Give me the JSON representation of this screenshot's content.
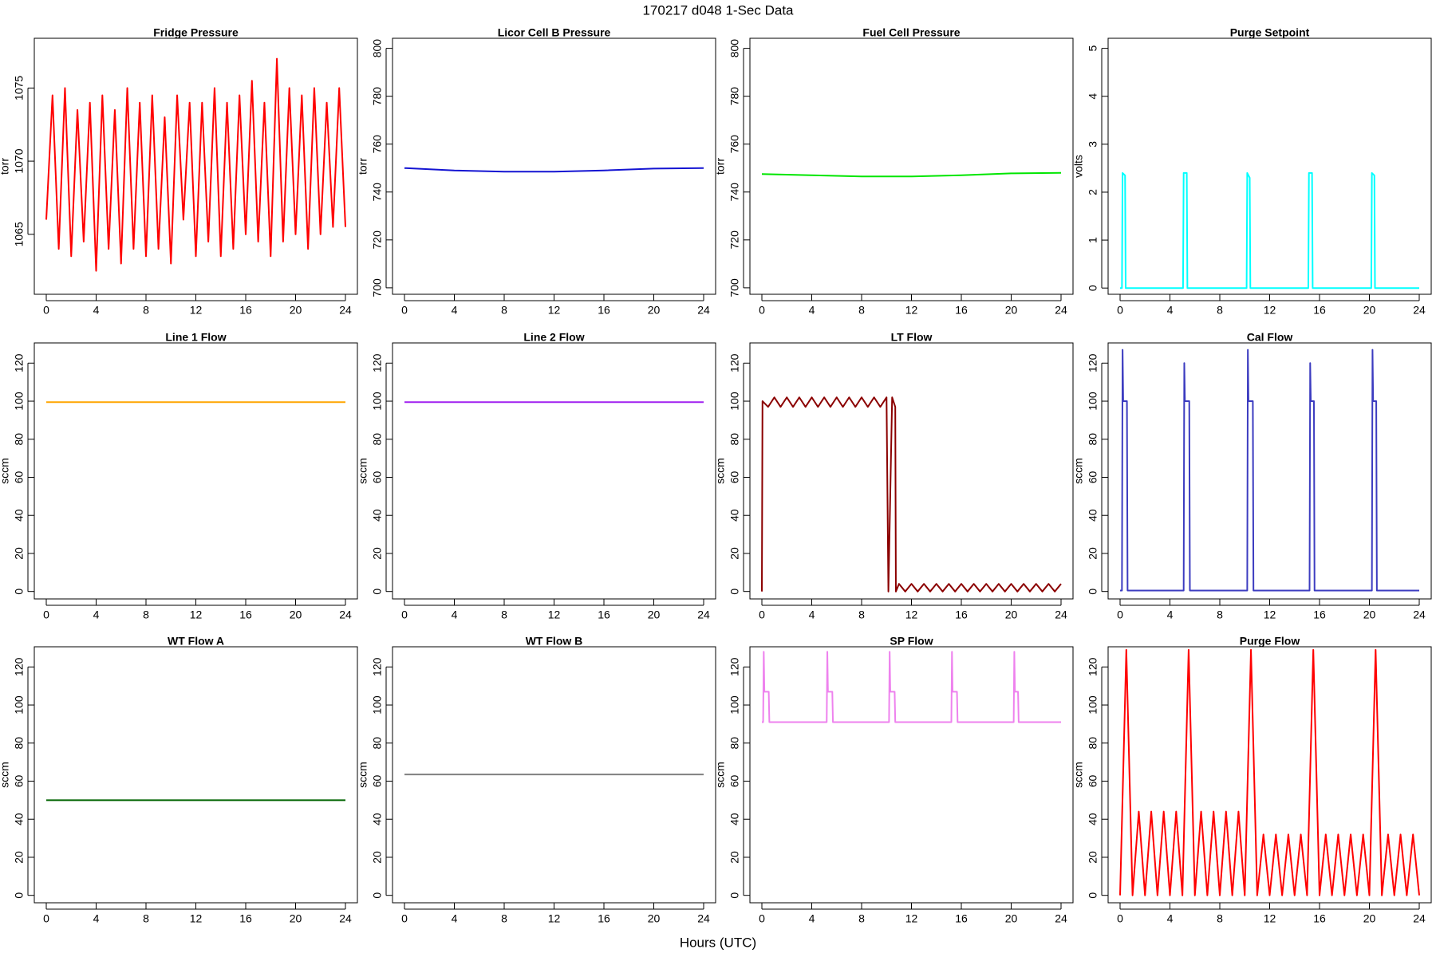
{
  "title": "170217   d048   1-Sec Data",
  "xlabel": "Hours (UTC)",
  "chart_data": [
    {
      "type": "line",
      "title": "Fridge Pressure",
      "ylabel": "torr",
      "color": "#ff0000",
      "x": [
        0,
        0.5,
        1,
        1.5,
        2,
        2.5,
        3,
        3.5,
        4,
        4.5,
        5,
        5.5,
        6,
        6.5,
        7,
        7.5,
        8,
        8.5,
        9,
        9.5,
        10,
        10.5,
        11,
        11.5,
        12,
        12.5,
        13,
        13.5,
        14,
        14.5,
        15,
        15.5,
        16,
        16.5,
        17,
        17.5,
        18,
        18.5,
        19,
        19.5,
        20,
        20.5,
        21,
        21.5,
        22,
        22.5,
        23,
        23.5,
        24
      ],
      "values": [
        1066,
        1074.5,
        1064,
        1075,
        1063.5,
        1073.5,
        1064.5,
        1074,
        1062.5,
        1074.5,
        1064,
        1073.5,
        1063,
        1075,
        1064,
        1074,
        1063.5,
        1074.5,
        1064,
        1073,
        1063,
        1074.5,
        1066,
        1074,
        1063.5,
        1074,
        1064.5,
        1075,
        1063.5,
        1074,
        1064,
        1074.5,
        1065,
        1075.5,
        1064.5,
        1074,
        1063.5,
        1077,
        1064.5,
        1075,
        1065,
        1074.5,
        1064,
        1075,
        1065,
        1074,
        1065.5,
        1075,
        1065.5
      ],
      "xlim": [
        -0.96,
        24.96
      ],
      "xticks": [
        0,
        4,
        8,
        12,
        16,
        20,
        24
      ],
      "ylim": [
        1060.9,
        1078.4
      ],
      "yticks": [
        1065,
        1070,
        1075
      ]
    },
    {
      "type": "line",
      "title": "Licor Cell B Pressure",
      "ylabel": "torr",
      "color": "#1414d2",
      "x": [
        0,
        4,
        8,
        12,
        16,
        20,
        24
      ],
      "values": [
        750,
        749,
        748.5,
        748.5,
        749,
        749.8,
        750
      ],
      "xlim": [
        -0.96,
        24.96
      ],
      "xticks": [
        0,
        4,
        8,
        12,
        16,
        20,
        24
      ],
      "ylim": [
        697.3,
        804.2
      ],
      "yticks": [
        700,
        720,
        740,
        760,
        780,
        800
      ]
    },
    {
      "type": "line",
      "title": "Fuel Cell Pressure",
      "ylabel": "torr",
      "color": "#00e600",
      "x": [
        0,
        4,
        8,
        12,
        16,
        20,
        24
      ],
      "values": [
        747.5,
        747,
        746.5,
        746.5,
        747,
        747.8,
        748
      ],
      "xlim": [
        -0.96,
        24.96
      ],
      "xticks": [
        0,
        4,
        8,
        12,
        16,
        20,
        24
      ],
      "ylim": [
        697.3,
        804.2
      ],
      "yticks": [
        700,
        720,
        740,
        760,
        780,
        800
      ]
    },
    {
      "type": "line",
      "title": "Purge Setpoint",
      "ylabel": "volts",
      "color": "#00ffff",
      "x": [
        0,
        0.15,
        0.2,
        0.4,
        0.45,
        5.05,
        5.1,
        5.35,
        5.4,
        10.15,
        10.2,
        10.4,
        10.45,
        15.1,
        15.15,
        15.4,
        15.45,
        20.15,
        20.2,
        20.4,
        20.45,
        24
      ],
      "values": [
        0,
        0,
        2.4,
        2.35,
        0,
        0,
        2.4,
        2.4,
        0,
        0,
        2.4,
        2.3,
        0,
        0,
        2.4,
        2.4,
        0,
        0,
        2.4,
        2.35,
        0,
        0
      ],
      "xlim": [
        -0.96,
        24.96
      ],
      "xticks": [
        0,
        4,
        8,
        12,
        16,
        20,
        24
      ],
      "ylim": [
        -0.13,
        5.21
      ],
      "yticks": [
        0,
        1,
        2,
        3,
        4,
        5
      ]
    },
    {
      "type": "line",
      "title": "Line 1 Flow",
      "ylabel": "sccm",
      "color": "#ffa500",
      "x": [
        0,
        6,
        12,
        18,
        24
      ],
      "values": [
        99.5,
        99.5,
        99.5,
        99.5,
        99.5
      ],
      "xlim": [
        -0.96,
        24.96
      ],
      "xticks": [
        0,
        4,
        8,
        12,
        16,
        20,
        24
      ],
      "ylim": [
        -3.9,
        130.6
      ],
      "yticks": [
        0,
        20,
        40,
        60,
        80,
        100,
        120
      ]
    },
    {
      "type": "line",
      "title": "Line 2 Flow",
      "ylabel": "sccm",
      "color": "#a020f0",
      "x": [
        0,
        6,
        12,
        18,
        24
      ],
      "values": [
        99.5,
        99.5,
        99.5,
        99.5,
        99.5
      ],
      "xlim": [
        -0.96,
        24.96
      ],
      "xticks": [
        0,
        4,
        8,
        12,
        16,
        20,
        24
      ],
      "ylim": [
        -3.9,
        130.6
      ],
      "yticks": [
        0,
        20,
        40,
        60,
        80,
        100,
        120
      ]
    },
    {
      "type": "line",
      "title": "LT Flow",
      "ylabel": "sccm",
      "color": "#8b0000",
      "x": [
        0,
        0.05,
        0.5,
        1,
        1.5,
        2,
        2.5,
        3,
        3.5,
        4,
        4.5,
        5,
        5.5,
        6,
        6.5,
        7,
        7.5,
        8,
        8.5,
        9,
        9.5,
        10,
        10.15,
        10.45,
        10.7,
        10.75,
        11,
        11.5,
        12,
        12.5,
        13,
        13.5,
        14,
        14.5,
        15,
        15.5,
        16,
        16.5,
        17,
        17.5,
        18,
        18.5,
        19,
        19.5,
        20,
        20.5,
        21,
        21.5,
        22,
        22.5,
        23,
        23.5,
        24
      ],
      "values": [
        0,
        100,
        97,
        102,
        97,
        102,
        97,
        102,
        97,
        102,
        97,
        102,
        97,
        102,
        97,
        102,
        97,
        102,
        97,
        102,
        97,
        102,
        0,
        102,
        97,
        0,
        4,
        0,
        4,
        0,
        4,
        0,
        4,
        0,
        4,
        0,
        4,
        0,
        4,
        0,
        4,
        0,
        4,
        0,
        4,
        0,
        4,
        0,
        4,
        0,
        4,
        0,
        4
      ],
      "xlim": [
        -0.96,
        24.96
      ],
      "xticks": [
        0,
        4,
        8,
        12,
        16,
        20,
        24
      ],
      "ylim": [
        -3.9,
        130.6
      ],
      "yticks": [
        0,
        20,
        40,
        60,
        80,
        100,
        120
      ]
    },
    {
      "type": "line",
      "title": "Cal Flow",
      "ylabel": "sccm",
      "color": "#3c3cc0",
      "x": [
        0,
        0.15,
        0.2,
        0.25,
        0.55,
        0.6,
        5.1,
        5.15,
        5.2,
        5.55,
        5.6,
        10.2,
        10.25,
        10.3,
        10.65,
        10.7,
        15.2,
        15.25,
        15.3,
        15.55,
        15.6,
        20.2,
        20.25,
        20.3,
        20.55,
        20.6,
        24
      ],
      "values": [
        0.5,
        0.5,
        127,
        100,
        100,
        0.5,
        0.5,
        120,
        100,
        100,
        0.5,
        0.5,
        127,
        100,
        100,
        0.5,
        0.5,
        120,
        100,
        100,
        0.5,
        0.5,
        127,
        100,
        100,
        0.5,
        0.5
      ],
      "xlim": [
        -0.96,
        24.96
      ],
      "xticks": [
        0,
        4,
        8,
        12,
        16,
        20,
        24
      ],
      "ylim": [
        -3.9,
        130.6
      ],
      "yticks": [
        0,
        20,
        40,
        60,
        80,
        100,
        120
      ]
    },
    {
      "type": "line",
      "title": "WT Flow A",
      "ylabel": "sccm",
      "color": "#006400",
      "x": [
        0,
        6,
        12,
        18,
        24
      ],
      "values": [
        50,
        50,
        50,
        50,
        50
      ],
      "xlim": [
        -0.96,
        24.96
      ],
      "xticks": [
        0,
        4,
        8,
        12,
        16,
        20,
        24
      ],
      "ylim": [
        -3.9,
        130.6
      ],
      "yticks": [
        0,
        20,
        40,
        60,
        80,
        100,
        120
      ]
    },
    {
      "type": "line",
      "title": "WT Flow B",
      "ylabel": "sccm",
      "color": "#808080",
      "x": [
        0,
        6,
        12,
        18,
        24
      ],
      "values": [
        63.5,
        63.5,
        63.5,
        63.5,
        63.5
      ],
      "xlim": [
        -0.96,
        24.96
      ],
      "xticks": [
        0,
        4,
        8,
        12,
        16,
        20,
        24
      ],
      "ylim": [
        -3.9,
        130.6
      ],
      "yticks": [
        0,
        20,
        40,
        60,
        80,
        100,
        120
      ]
    },
    {
      "type": "line",
      "title": "SP Flow",
      "ylabel": "sccm",
      "color": "#ee82ee",
      "x": [
        0,
        0.1,
        0.15,
        0.2,
        0.55,
        0.6,
        5.2,
        5.25,
        5.3,
        5.65,
        5.7,
        10.2,
        10.25,
        10.3,
        10.65,
        10.7,
        15.2,
        15.25,
        15.3,
        15.65,
        15.7,
        20.2,
        20.25,
        20.3,
        20.55,
        20.6,
        24
      ],
      "values": [
        91,
        91,
        128,
        107,
        107,
        91,
        91,
        128,
        107,
        107,
        91,
        91,
        128,
        107,
        107,
        91,
        91,
        128,
        107,
        107,
        91,
        91,
        128,
        107,
        107,
        91,
        91
      ],
      "xlim": [
        -0.96,
        24.96
      ],
      "xticks": [
        0,
        4,
        8,
        12,
        16,
        20,
        24
      ],
      "ylim": [
        -3.9,
        130.6
      ],
      "yticks": [
        0,
        20,
        40,
        60,
        80,
        100,
        120
      ]
    },
    {
      "type": "line",
      "title": "Purge Flow",
      "ylabel": "sccm",
      "color": "#ff0000",
      "x": [
        0,
        0.5,
        1,
        1.5,
        2,
        2.5,
        3,
        3.5,
        4,
        4.5,
        5,
        5.5,
        6,
        6.5,
        7,
        7.5,
        8,
        8.5,
        9,
        9.5,
        10,
        10.5,
        11,
        11.5,
        12,
        12.5,
        13,
        13.5,
        14,
        14.5,
        15,
        15.5,
        16,
        16.5,
        17,
        17.5,
        18,
        18.5,
        19,
        19.5,
        20,
        20.5,
        21,
        21.5,
        22,
        22.5,
        23,
        23.5,
        24
      ],
      "values": [
        0,
        129,
        0,
        44,
        0,
        44,
        0,
        44,
        0,
        44,
        0,
        129,
        0,
        44,
        0,
        44,
        0,
        44,
        0,
        44,
        0,
        129,
        0,
        32,
        0,
        32,
        0,
        32,
        0,
        32,
        0,
        129,
        0,
        32,
        0,
        32,
        0,
        32,
        0,
        32,
        0,
        129,
        0,
        32,
        0,
        32,
        0,
        32,
        0
      ],
      "xlim": [
        -0.96,
        24.96
      ],
      "xticks": [
        0,
        4,
        8,
        12,
        16,
        20,
        24
      ],
      "ylim": [
        -3.9,
        130.6
      ],
      "yticks": [
        0,
        20,
        40,
        60,
        80,
        100,
        120
      ]
    }
  ]
}
